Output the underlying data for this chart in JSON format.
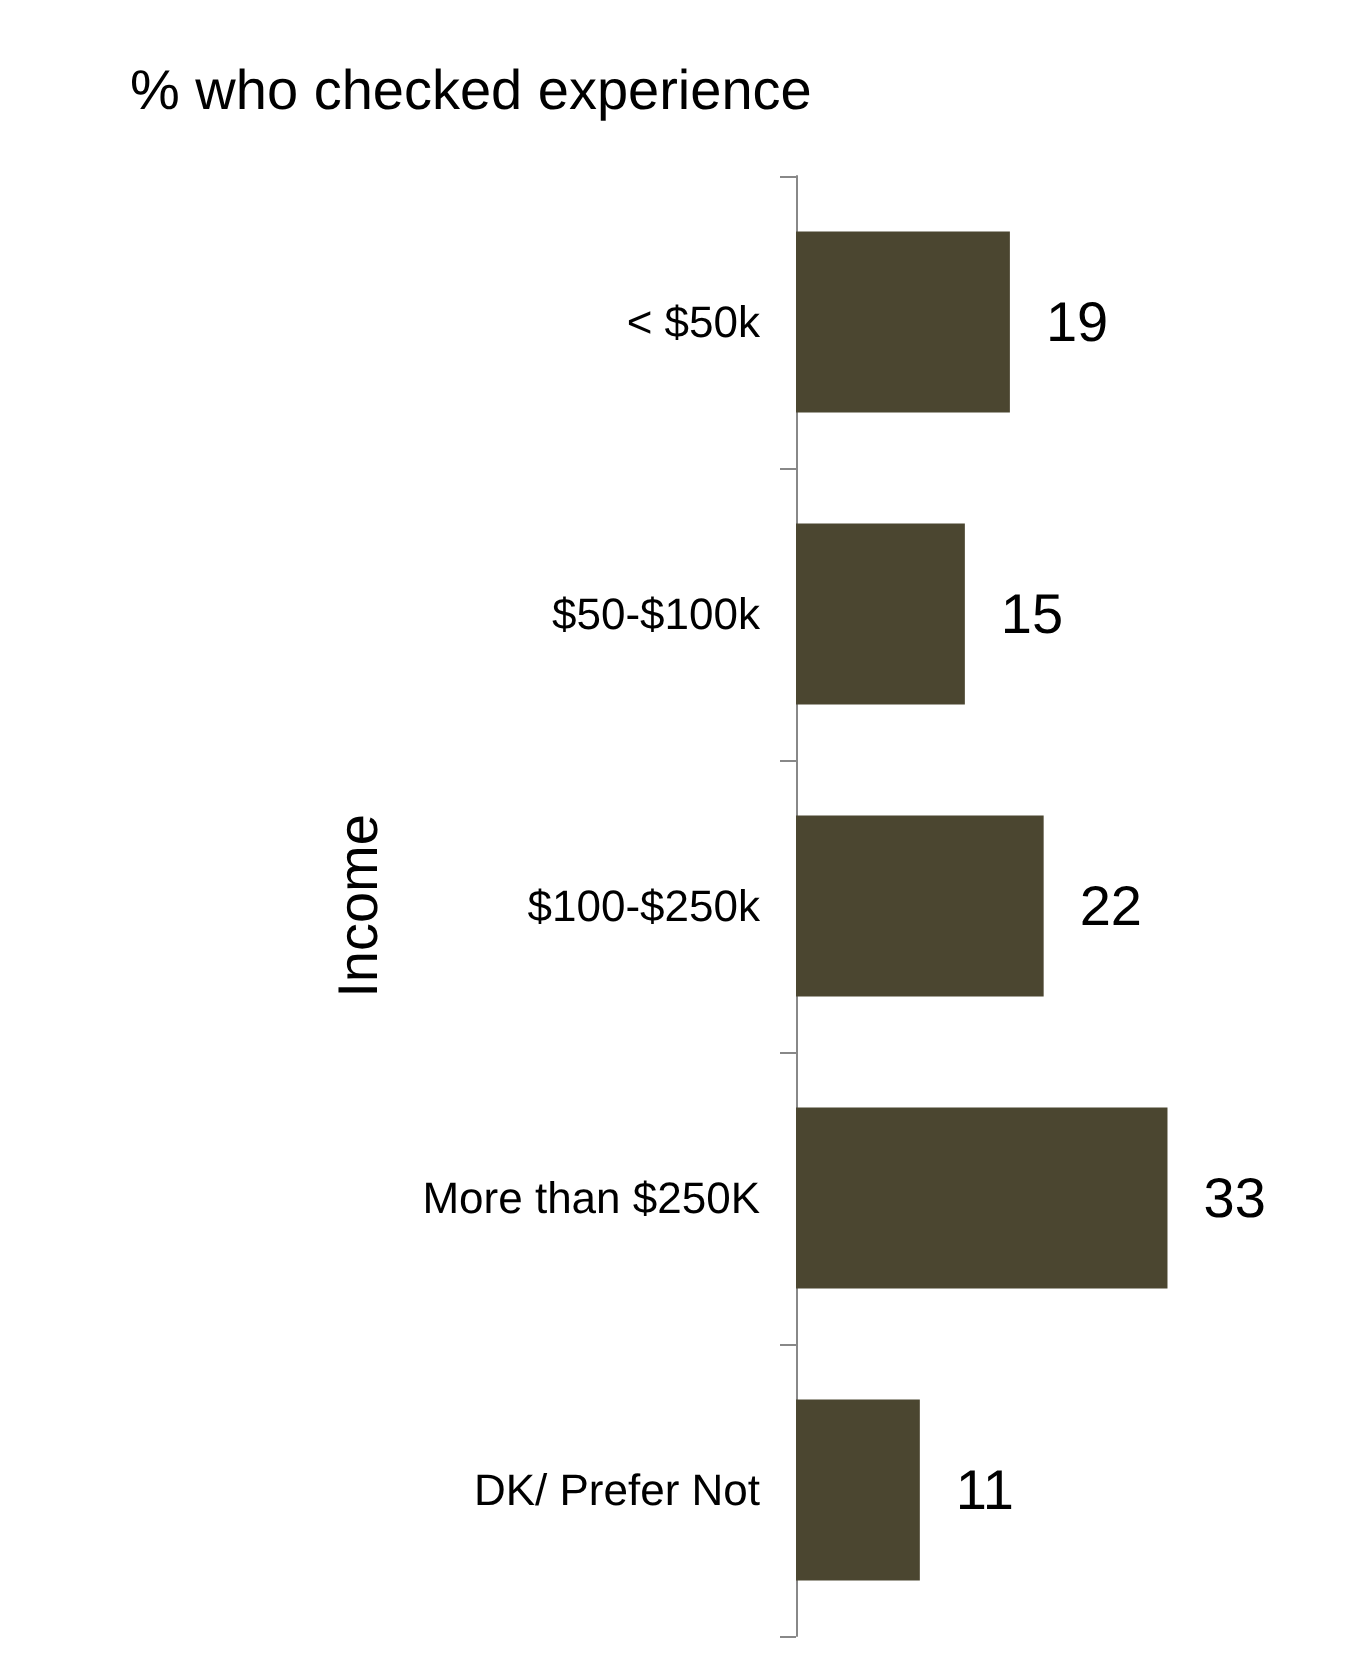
{
  "chart_data": {
    "type": "bar",
    "orientation": "horizontal",
    "title": "% who checked experience",
    "ylabel": "Income",
    "categories": [
      "< $50k",
      "$50-$100k",
      "$100-$250k",
      "More than $250K",
      "DK/ Prefer Not"
    ],
    "values": [
      19,
      15,
      22,
      33,
      11
    ],
    "color": "#4b4630",
    "data_labels": true
  }
}
